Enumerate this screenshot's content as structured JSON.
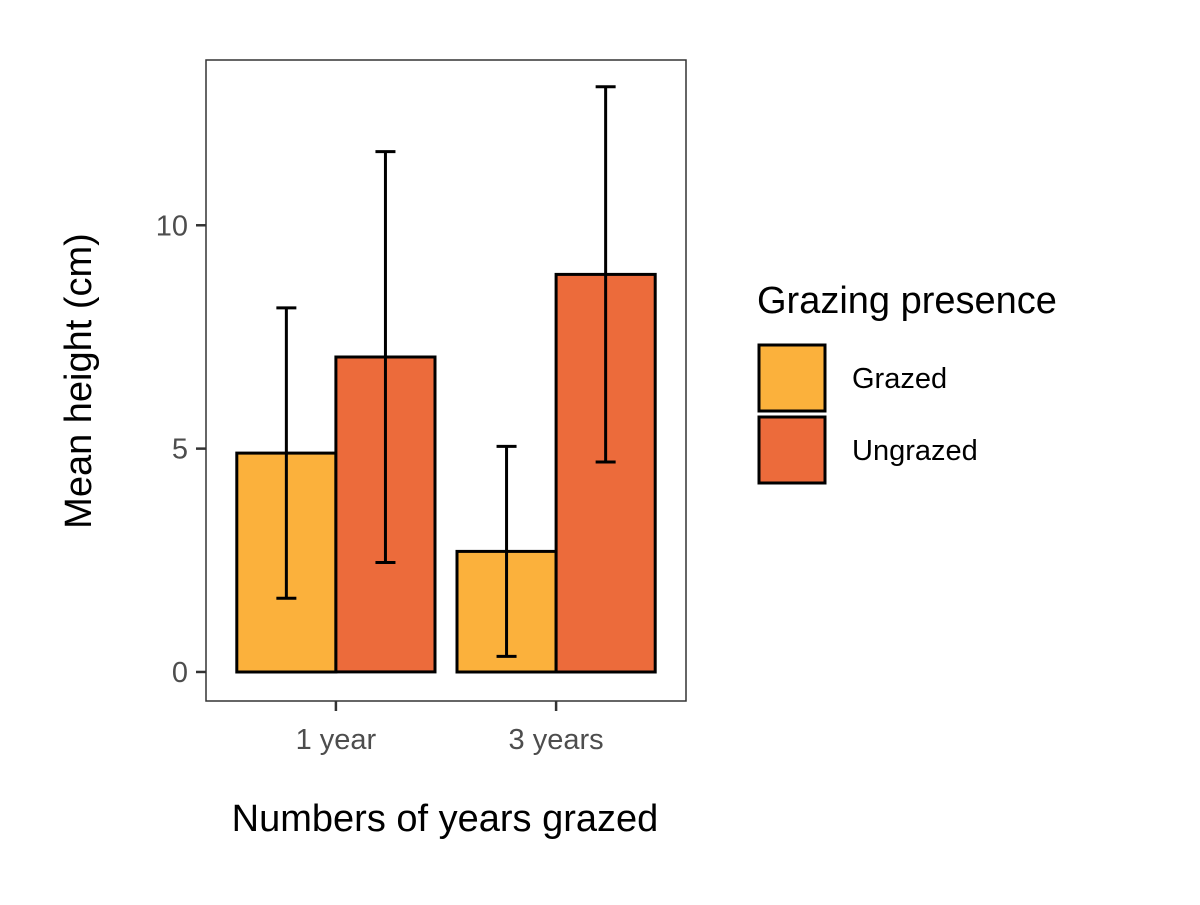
{
  "chart_data": {
    "type": "bar",
    "title": "",
    "xlabel": "Numbers of years grazed",
    "ylabel": "Mean height (cm)",
    "categories": [
      "1 year",
      "3 years"
    ],
    "ylim": [
      -0.65,
      13.7
    ],
    "yticks": [
      0,
      5,
      10
    ],
    "grid": false,
    "legend": {
      "title": "Grazing presence",
      "position": "right"
    },
    "series": [
      {
        "name": "Grazed",
        "color": "#FBB13C",
        "values": [
          4.9,
          2.7
        ],
        "error_low": [
          1.65,
          0.35
        ],
        "error_high": [
          8.15,
          5.05
        ]
      },
      {
        "name": "Ungrazed",
        "color": "#EC6B3B",
        "values": [
          7.05,
          8.9
        ],
        "error_low": [
          2.45,
          4.7
        ],
        "error_high": [
          11.65,
          13.1
        ]
      }
    ]
  }
}
